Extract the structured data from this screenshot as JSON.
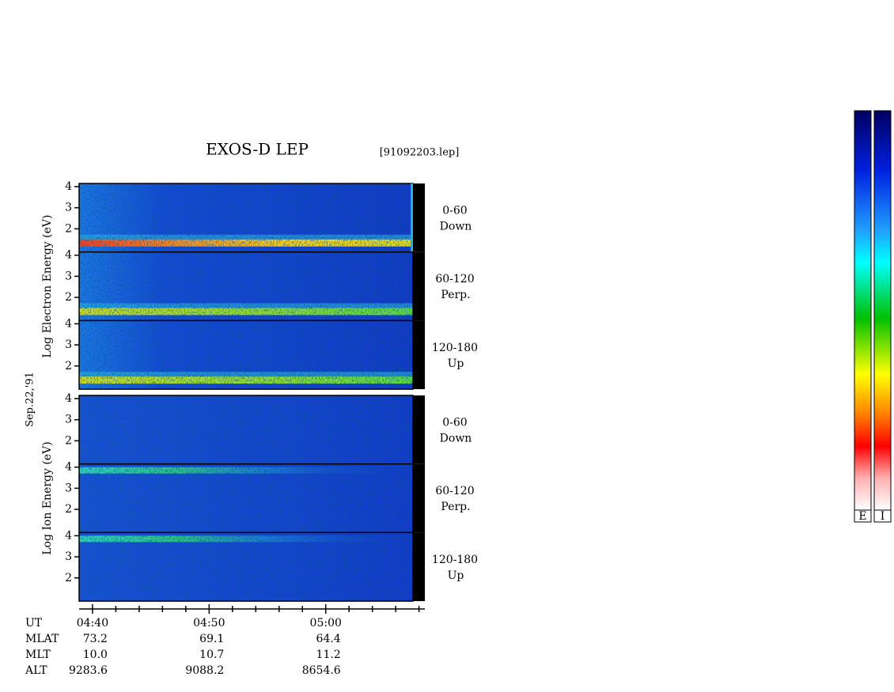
{
  "chart_data": {
    "type": "spectrogram",
    "title": "EXOS-D LEP",
    "file_label": "[91092203.lep]",
    "date_label": "Sep.22,'91",
    "xlim": [
      38.85,
      68.5
    ],
    "xticks": [
      {
        "value": 40,
        "label": "04:40"
      },
      {
        "value": 50,
        "label": "04:50"
      },
      {
        "value": 60,
        "label": "05:00"
      }
    ],
    "xminor_ticks": [
      42,
      44,
      46,
      48,
      52,
      54,
      56,
      58,
      62,
      64,
      66,
      68
    ],
    "ylim": [
      0.9,
      4.15
    ],
    "yticks": [
      2,
      3,
      4
    ],
    "groups": [
      {
        "label": "Log Electron Energy (eV)",
        "panels": [
          {
            "angle": "0-60",
            "direction": "Down"
          },
          {
            "angle": "60-120",
            "direction": "Perp."
          },
          {
            "angle": "120-180",
            "direction": "Up"
          }
        ]
      },
      {
        "label": "Log Ion Energy (eV)",
        "panels": [
          {
            "angle": "0-60",
            "direction": "Down"
          },
          {
            "angle": "60-120",
            "direction": "Perp."
          },
          {
            "angle": "120-180",
            "direction": "Up"
          }
        ]
      }
    ],
    "table": {
      "row_labels": [
        "UT",
        "MLAT",
        "MLT",
        "ALT"
      ],
      "rows": [
        [
          "73.2",
          "69.1",
          "64.4"
        ],
        [
          "10.0",
          "10.7",
          "11.2"
        ],
        [
          "9283.6",
          "9088.2",
          "8654.6"
        ]
      ]
    },
    "colorbar_labels": [
      "E",
      "I"
    ]
  }
}
